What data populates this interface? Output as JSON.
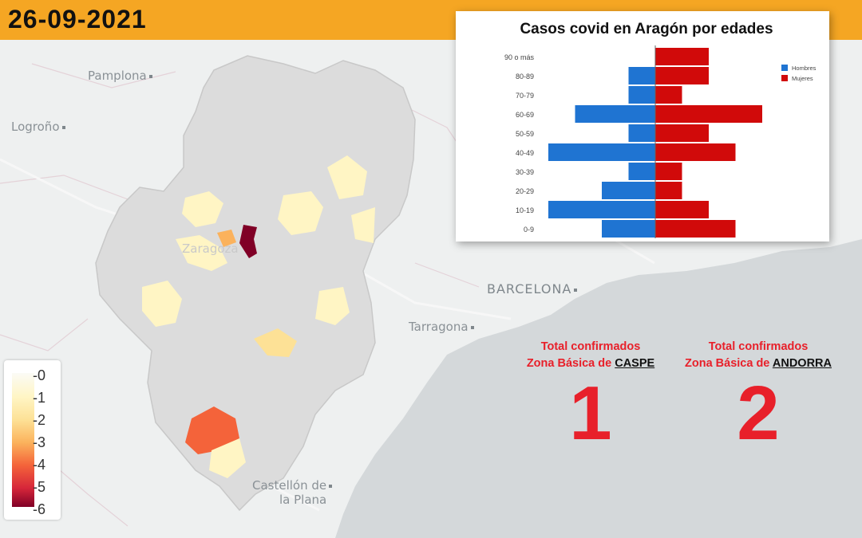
{
  "header": {
    "date": "26-09-2021",
    "bar_color": "#f5a623"
  },
  "map": {
    "cities": [
      {
        "name": "Pamplona",
        "size": "small"
      },
      {
        "name": "Logroño",
        "size": "small"
      },
      {
        "name": "Zaragoza",
        "size": "small"
      },
      {
        "name": "BARCELONA",
        "size": "big"
      },
      {
        "name": "Tarragona",
        "size": "small"
      },
      {
        "name": "Castellón de",
        "size": "small"
      },
      {
        "name": "la Plana",
        "size": "small"
      }
    ],
    "legend": {
      "ticks": [
        "0",
        "1",
        "2",
        "3",
        "4",
        "5",
        "6"
      ],
      "colors": [
        "#fbfbf6",
        "#fff5c4",
        "#fde196",
        "#fbb25c",
        "#f4633a",
        "#d6263a",
        "#800026"
      ]
    }
  },
  "chart_data": {
    "type": "bar",
    "title": "Casos covid en Aragón por edades",
    "categories": [
      "90 o más",
      "80-89",
      "70-79",
      "60-69",
      "50-59",
      "40-49",
      "30-39",
      "20-29",
      "10-19",
      "0-9"
    ],
    "series": [
      {
        "name": "Hombres",
        "color": "#1f74d2",
        "values": [
          0,
          1,
          1,
          3,
          1,
          4,
          1,
          2,
          4,
          2
        ]
      },
      {
        "name": "Mujeres",
        "color": "#d10a0a",
        "values": [
          2,
          2,
          1,
          4,
          2,
          3,
          1,
          1,
          2,
          3
        ]
      }
    ],
    "legend_position": "top-right"
  },
  "totals": [
    {
      "line1": "Total confirmados",
      "line2_prefix": "Zona Básica de",
      "zone": "CASPE",
      "value": "1"
    },
    {
      "line1": "Total confirmados",
      "line2_prefix": "Zona Básica de",
      "zone": "ANDORRA",
      "value": "2"
    }
  ]
}
